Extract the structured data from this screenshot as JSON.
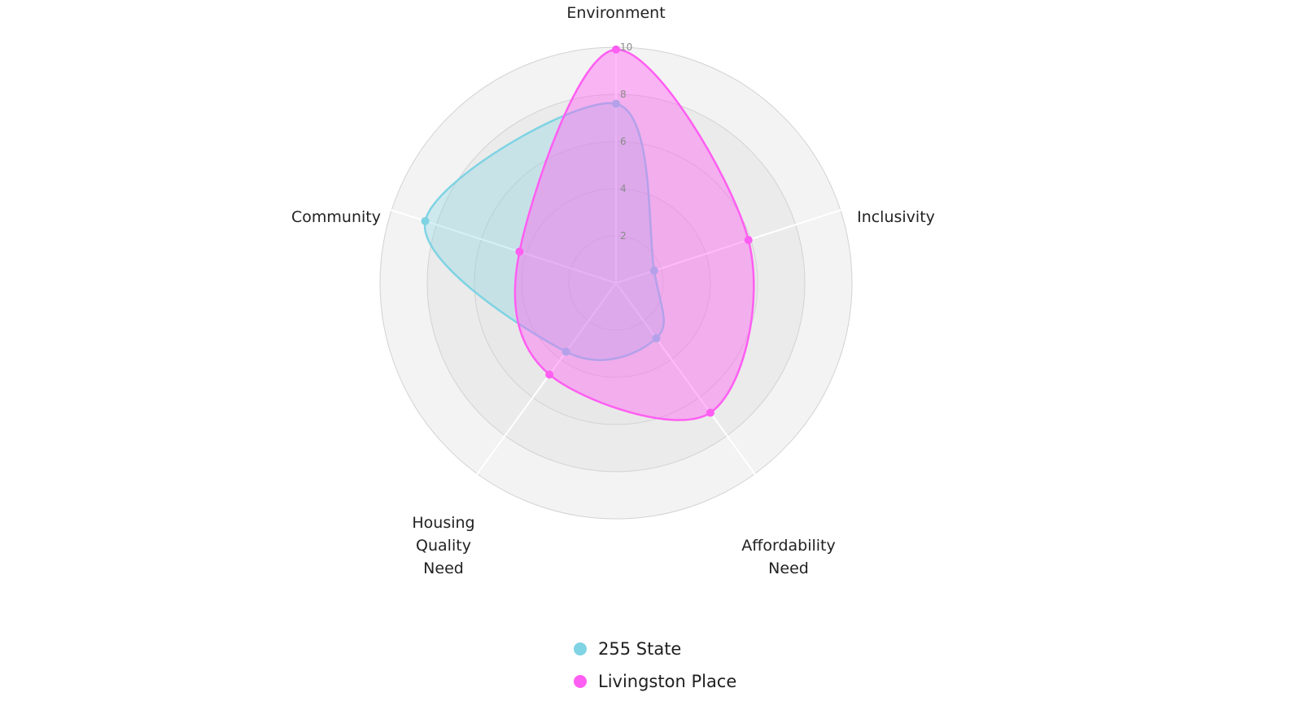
{
  "chart_data": {
    "type": "radar",
    "categories": [
      "Environment",
      "Inclusivity",
      "Affordability Need",
      "Housing Quality Need",
      "Community"
    ],
    "category_lines": [
      [
        "Environment"
      ],
      [
        "Inclusivity"
      ],
      [
        "Affordability",
        "Need"
      ],
      [
        "Housing",
        "Quality",
        "Need"
      ],
      [
        "Community"
      ]
    ],
    "rlim": [
      0,
      10
    ],
    "ticks": [
      "2",
      "4",
      "6",
      "8",
      "10"
    ],
    "series": [
      {
        "name": "255 State",
        "values": [
          7.6,
          1.7,
          2.9,
          3.6,
          8.5
        ],
        "color": "#7fd3e3"
      },
      {
        "name": "Livingston Place",
        "values": [
          9.9,
          5.9,
          6.8,
          4.8,
          4.3
        ],
        "color": "#ff5ef2"
      }
    ],
    "legend": "bottom-center",
    "grid": true
  }
}
